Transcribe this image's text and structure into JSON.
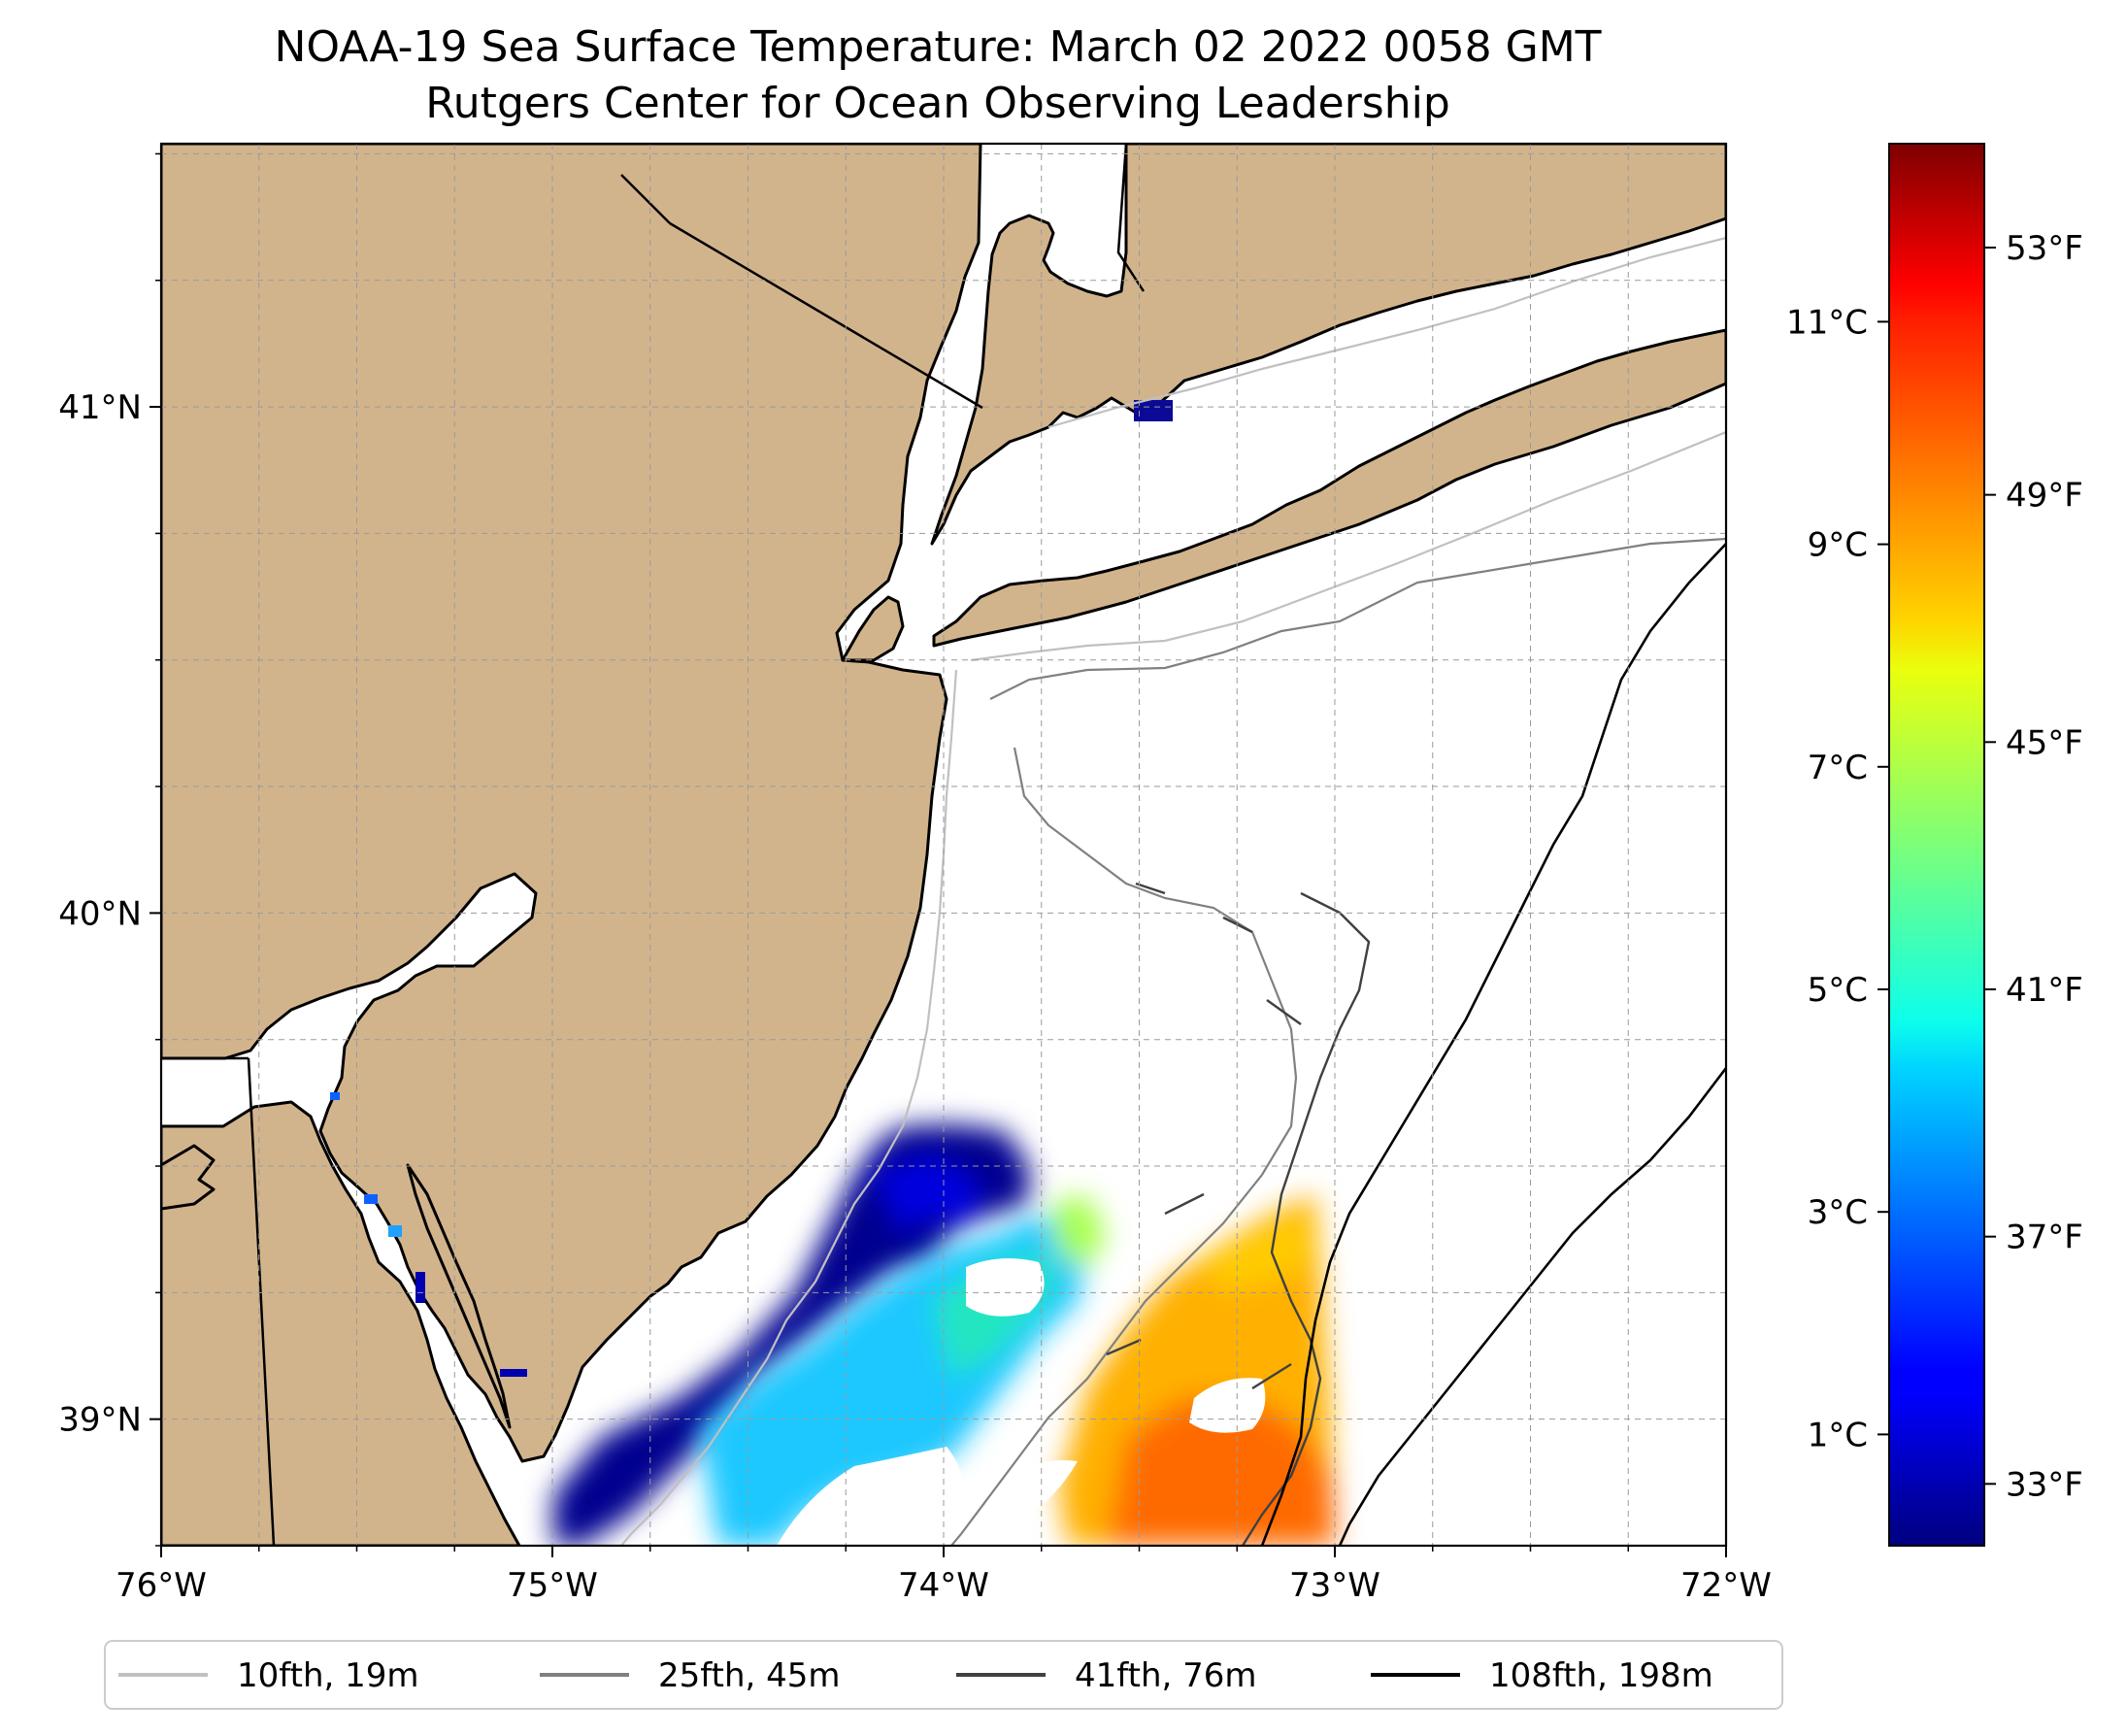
{
  "title": {
    "line1": "NOAA-19 Sea Surface Temperature: March 02 2022 0058 GMT",
    "line2": "Rutgers Center for Ocean Observing Leadership"
  },
  "map": {
    "extent": {
      "lon_min": -76.0,
      "lon_max": -72.0,
      "lat_min": 38.75,
      "lat_max": 41.52
    },
    "land_color": "#d2b48c",
    "ocean_color": "#ffffff",
    "x_ticks": [
      {
        "value": -76,
        "label": "76°W"
      },
      {
        "value": -75,
        "label": "75°W"
      },
      {
        "value": -74,
        "label": "74°W"
      },
      {
        "value": -73,
        "label": "73°W"
      },
      {
        "value": -72,
        "label": "72°W"
      }
    ],
    "y_ticks": [
      {
        "value": 41,
        "label": "41°N"
      },
      {
        "value": 40,
        "label": "40°N"
      },
      {
        "value": 39,
        "label": "39°N"
      }
    ],
    "grid_lon_step": 0.25,
    "grid_lat_step": 0.25
  },
  "colorbar": {
    "colormap": "jet",
    "min_c": 0.0,
    "max_c": 12.6,
    "celsius_ticks": [
      {
        "value": 1,
        "label": "1°C"
      },
      {
        "value": 3,
        "label": "3°C"
      },
      {
        "value": 5,
        "label": "5°C"
      },
      {
        "value": 7,
        "label": "7°C"
      },
      {
        "value": 9,
        "label": "9°C"
      },
      {
        "value": 11,
        "label": "11°C"
      }
    ],
    "fahrenheit_ticks": [
      {
        "value": 33,
        "label": "33°F"
      },
      {
        "value": 37,
        "label": "37°F"
      },
      {
        "value": 41,
        "label": "41°F"
      },
      {
        "value": 45,
        "label": "45°F"
      },
      {
        "value": 49,
        "label": "49°F"
      },
      {
        "value": 53,
        "label": "53°F"
      }
    ]
  },
  "legend": {
    "items": [
      {
        "label": "10fth, 19m",
        "color": "#c0c0c0"
      },
      {
        "label": "25fth, 45m",
        "color": "#808080"
      },
      {
        "label": "41fth, 76m",
        "color": "#404040"
      },
      {
        "label": "108fth, 198m",
        "color": "#000000"
      }
    ]
  }
}
